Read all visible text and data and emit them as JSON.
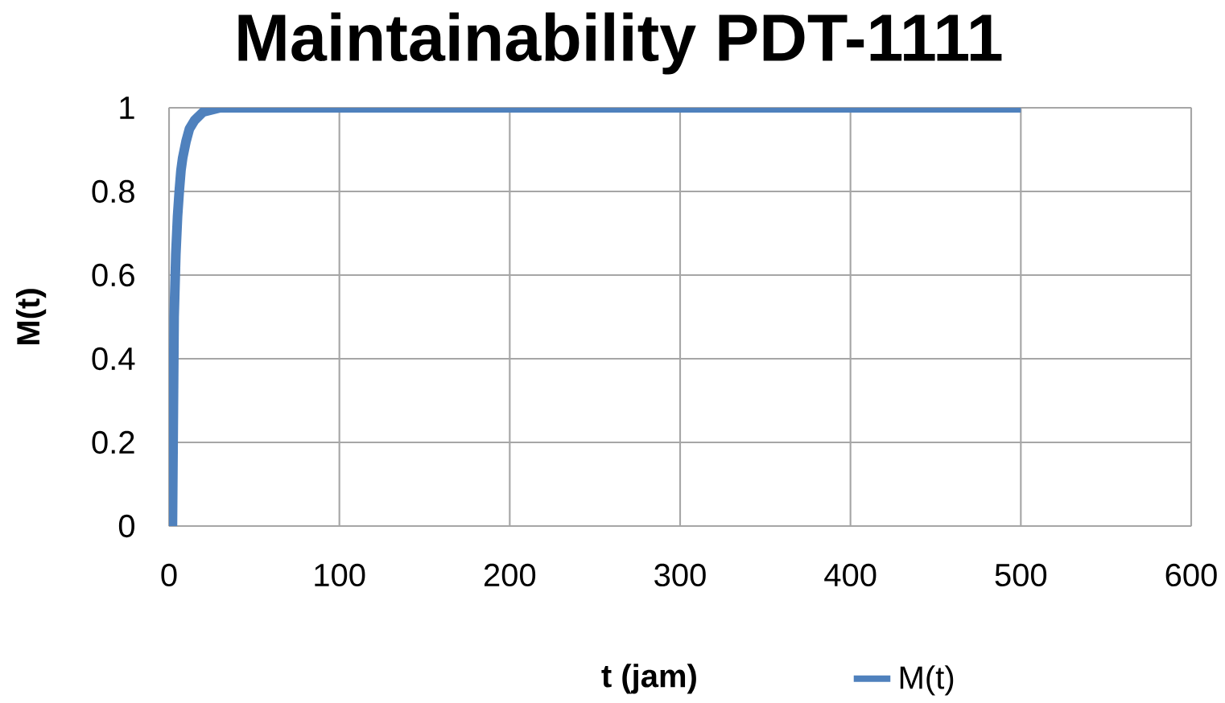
{
  "chart_data": {
    "type": "line",
    "title": "Maintainability PDT-1111",
    "xlabel": "t (jam)",
    "ylabel": "M(t)",
    "series": [
      {
        "name": "M(t)",
        "color": "#4f81bd",
        "x": [
          2,
          3,
          4,
          5,
          6,
          7,
          8,
          10,
          12,
          15,
          20,
          25,
          30,
          50,
          100,
          200,
          300,
          400,
          500
        ],
        "values": [
          0,
          0.5,
          0.65,
          0.74,
          0.8,
          0.85,
          0.88,
          0.92,
          0.95,
          0.97,
          0.99,
          0.995,
          1,
          1,
          1,
          1,
          1,
          1,
          1
        ]
      }
    ],
    "xlim": [
      0,
      600
    ],
    "ylim": [
      0,
      1
    ],
    "xticks": [
      0,
      100,
      200,
      300,
      400,
      500,
      600
    ],
    "yticks": [
      0,
      0.2,
      0.4,
      0.6,
      0.8,
      1
    ],
    "grid": true,
    "legend": "bottom",
    "marker": "none",
    "line_style": "solid"
  }
}
